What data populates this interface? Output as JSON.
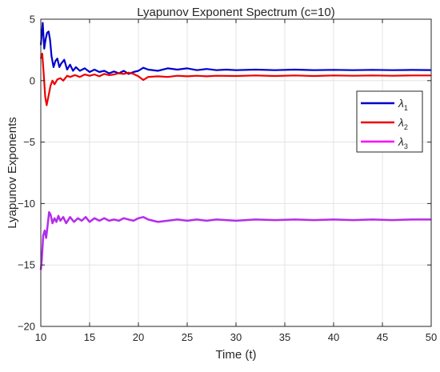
{
  "chart_data": {
    "type": "line",
    "title": "Lyapunov Exponent Spectrum (c=10)",
    "xlabel": "Time (t)",
    "ylabel": "Lyapunov Exponents",
    "xlim": [
      10,
      50
    ],
    "ylim": [
      -20,
      5
    ],
    "xticks": [
      10,
      15,
      20,
      25,
      30,
      35,
      40,
      45,
      50
    ],
    "yticks": [
      5,
      0,
      -5,
      -10,
      -15,
      -20
    ],
    "xtick_labels": [
      "10",
      "15",
      "20",
      "25",
      "30",
      "35",
      "40",
      "45",
      "50"
    ],
    "ytick_labels": [
      "5",
      "0",
      "−5",
      "−10",
      "−15",
      "−20"
    ],
    "grid": true,
    "legend_position": "upper-right",
    "series": [
      {
        "name": "λ1",
        "legend_symbol": "λ",
        "legend_sub": "1",
        "color": "#0000cc",
        "x": [
          10,
          10.2,
          10.35,
          10.5,
          10.65,
          10.8,
          10.95,
          11.1,
          11.3,
          11.5,
          11.7,
          11.9,
          12.1,
          12.4,
          12.7,
          13.0,
          13.3,
          13.6,
          14.0,
          14.5,
          15.0,
          15.5,
          16.0,
          16.5,
          17.0,
          17.5,
          18.0,
          18.5,
          19.0,
          19.5,
          20.0,
          20.5,
          21.0,
          22.0,
          23.0,
          24.0,
          25.0,
          26.0,
          27.0,
          28.0,
          29.0,
          30.0,
          32.0,
          34.0,
          36.0,
          38.0,
          40.0,
          42.0,
          44.0,
          46.0,
          48.0,
          50.0
        ],
        "y": [
          2.9,
          4.7,
          2.6,
          3.4,
          3.9,
          4.0,
          3.3,
          2.0,
          1.1,
          1.6,
          1.8,
          1.1,
          1.4,
          1.7,
          0.9,
          1.3,
          0.8,
          1.1,
          0.8,
          1.0,
          0.7,
          0.9,
          0.7,
          0.8,
          0.6,
          0.75,
          0.6,
          0.8,
          0.55,
          0.7,
          0.8,
          1.05,
          0.9,
          0.8,
          1.0,
          0.9,
          1.0,
          0.85,
          0.95,
          0.85,
          0.9,
          0.85,
          0.9,
          0.85,
          0.9,
          0.85,
          0.88,
          0.85,
          0.88,
          0.85,
          0.87,
          0.86
        ]
      },
      {
        "name": "λ2",
        "legend_symbol": "λ",
        "legend_sub": "2",
        "color": "#ee0000",
        "x": [
          10,
          10.15,
          10.3,
          10.45,
          10.6,
          10.8,
          11.0,
          11.2,
          11.4,
          11.7,
          12.0,
          12.3,
          12.7,
          13.0,
          13.5,
          14.0,
          14.5,
          15.0,
          15.5,
          16.0,
          16.5,
          17.0,
          17.5,
          18.0,
          18.5,
          19.0,
          19.5,
          20.0,
          20.5,
          21.0,
          22.0,
          23.0,
          24.0,
          25.0,
          26.0,
          27.0,
          28.0,
          30.0,
          32.0,
          34.0,
          36.0,
          38.0,
          40.0,
          42.0,
          44.0,
          46.0,
          48.0,
          50.0
        ],
        "y": [
          1.8,
          2.2,
          0.5,
          -1.3,
          -2.0,
          -1.2,
          -0.4,
          0.0,
          -0.3,
          0.1,
          0.2,
          0.0,
          0.4,
          0.3,
          0.45,
          0.3,
          0.5,
          0.4,
          0.5,
          0.35,
          0.55,
          0.45,
          0.5,
          0.6,
          0.55,
          0.65,
          0.55,
          0.35,
          0.05,
          0.3,
          0.35,
          0.3,
          0.4,
          0.35,
          0.4,
          0.35,
          0.4,
          0.38,
          0.42,
          0.38,
          0.42,
          0.38,
          0.42,
          0.4,
          0.42,
          0.4,
          0.42,
          0.42
        ]
      },
      {
        "name": "λ3",
        "legend_symbol": "λ",
        "legend_sub": "3",
        "color": "#ff00ff",
        "x": [
          10,
          10.1,
          10.25,
          10.4,
          10.55,
          10.7,
          10.85,
          11.0,
          11.2,
          11.4,
          11.6,
          11.8,
          12.0,
          12.3,
          12.6,
          13.0,
          13.4,
          13.8,
          14.2,
          14.6,
          15.0,
          15.5,
          16.0,
          16.5,
          17.0,
          17.5,
          18.0,
          18.5,
          19.0,
          19.5,
          20.0,
          20.5,
          21.0,
          22.0,
          23.0,
          24.0,
          25.0,
          26.0,
          27.0,
          28.0,
          30.0,
          32.0,
          34.0,
          36.0,
          38.0,
          40.0,
          42.0,
          44.0,
          46.0,
          48.0,
          50.0
        ],
        "y": [
          -15.4,
          -14.6,
          -12.6,
          -12.2,
          -12.8,
          -11.8,
          -10.7,
          -10.9,
          -11.6,
          -11.2,
          -11.5,
          -11.0,
          -11.4,
          -11.1,
          -11.6,
          -11.1,
          -11.5,
          -11.2,
          -11.4,
          -11.1,
          -11.5,
          -11.2,
          -11.4,
          -11.2,
          -11.4,
          -11.3,
          -11.4,
          -11.2,
          -11.3,
          -11.4,
          -11.2,
          -11.1,
          -11.3,
          -11.5,
          -11.4,
          -11.3,
          -11.4,
          -11.3,
          -11.4,
          -11.3,
          -11.4,
          -11.3,
          -11.35,
          -11.3,
          -11.35,
          -11.3,
          -11.35,
          -11.3,
          -11.35,
          -11.3,
          -11.3
        ]
      }
    ]
  }
}
